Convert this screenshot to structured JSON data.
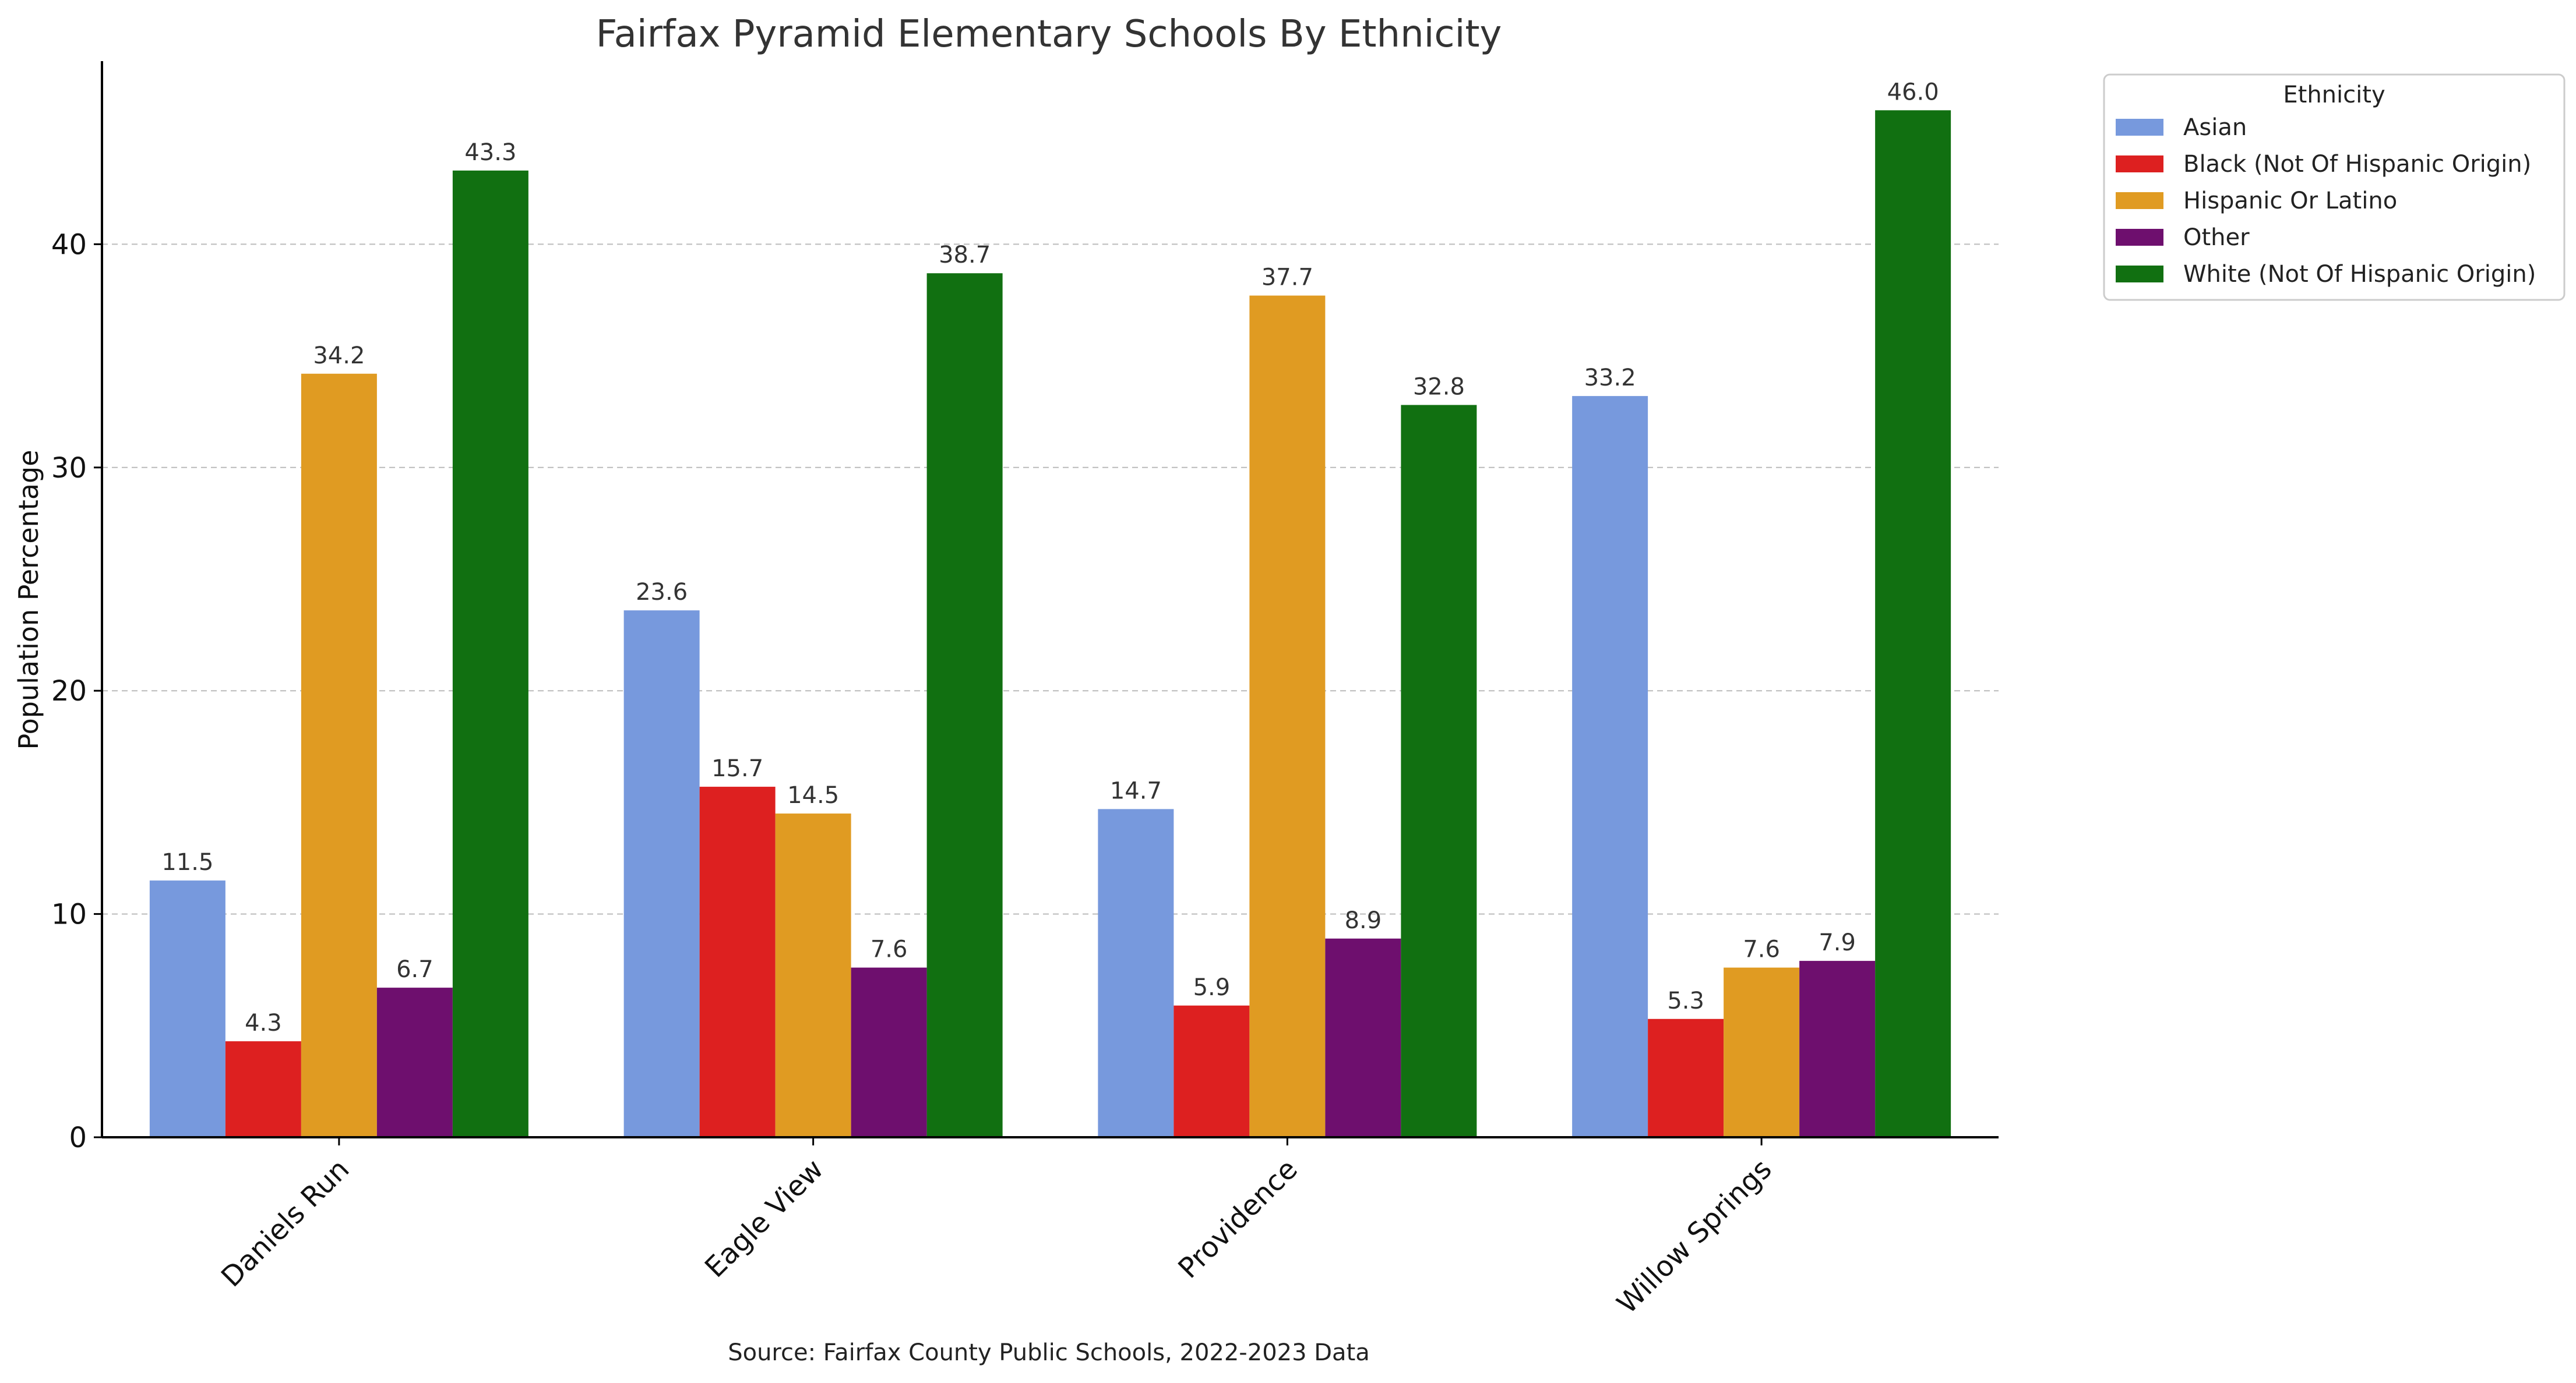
{
  "chart_data": {
    "type": "bar",
    "title": "Fairfax Pyramid Elementary Schools By Ethnicity",
    "xlabel": "",
    "ylabel": "Population Percentage",
    "ylim": [
      0,
      48.2
    ],
    "yticks": [
      0,
      10,
      20,
      30,
      40
    ],
    "grid": "y, dashed",
    "categories": [
      "Daniels Run",
      "Eagle View",
      "Providence",
      "Willow Springs"
    ],
    "legend": {
      "title": "Ethnicity",
      "placement": "outside top-right"
    },
    "source": "Source: Fairfax County Public Schools, 2022-2023 Data",
    "series": [
      {
        "name": "Asian",
        "color": "#7799dd",
        "values": [
          11.5,
          23.6,
          14.7,
          33.2
        ],
        "labels": [
          "11.5",
          "23.6",
          "14.7",
          "33.2"
        ]
      },
      {
        "name": "Black (Not Of Hispanic Origin)",
        "color": "#dd2020",
        "values": [
          4.3,
          15.7,
          5.9,
          5.3
        ],
        "labels": [
          "4.3",
          "15.7",
          "5.9",
          "5.3"
        ]
      },
      {
        "name": "Hispanic Or Latino",
        "color": "#e09b22",
        "values": [
          34.2,
          14.5,
          37.7,
          7.6
        ],
        "labels": [
          "34.2",
          "14.5",
          "37.7",
          "7.6"
        ]
      },
      {
        "name": "Other",
        "color": "#6e0f6e",
        "values": [
          6.7,
          7.6,
          8.9,
          7.9
        ],
        "labels": [
          "6.7",
          "7.6",
          "8.9",
          "7.9"
        ]
      },
      {
        "name": "White (Not Of Hispanic Origin)",
        "color": "#117011",
        "values": [
          43.3,
          38.7,
          32.8,
          46.0
        ],
        "labels": [
          "43.3",
          "38.7",
          "32.8",
          "46.0"
        ]
      }
    ]
  }
}
